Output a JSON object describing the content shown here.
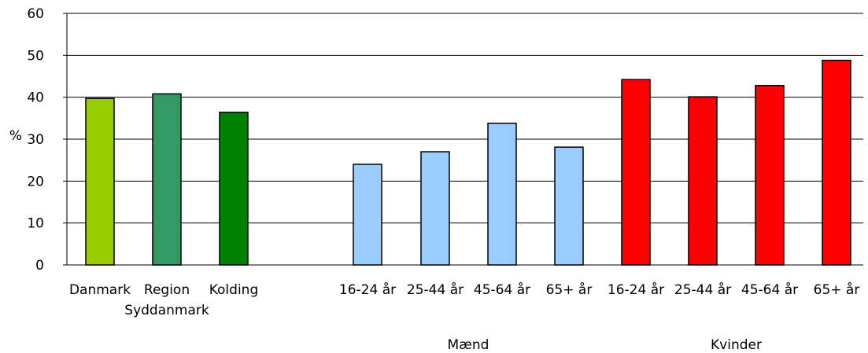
{
  "chart_data": {
    "type": "bar",
    "ylabel": "%",
    "ylim": [
      0,
      60
    ],
    "yticks": [
      "0",
      "10",
      "20",
      "30",
      "40",
      "50",
      "60"
    ],
    "grid": true,
    "categories": [
      {
        "label": [
          "Danmark"
        ],
        "value": 39.7,
        "color": "#99cc00"
      },
      {
        "label": [
          "Region",
          "Syddanmark"
        ],
        "value": 40.8,
        "color": "#339966"
      },
      {
        "label": [
          "Kolding"
        ],
        "value": 36.4,
        "color": "#008000"
      },
      {
        "label": [
          "16-24 år"
        ],
        "value": 24.0,
        "color": "#99ccff",
        "group": "Mænd"
      },
      {
        "label": [
          "25-44 år"
        ],
        "value": 27.0,
        "color": "#99ccff",
        "group": "Mænd"
      },
      {
        "label": [
          "45-64 år"
        ],
        "value": 33.8,
        "color": "#99ccff",
        "group": "Mænd"
      },
      {
        "label": [
          "65+ år"
        ],
        "value": 28.1,
        "color": "#99ccff",
        "group": "Mænd"
      },
      {
        "label": [
          "16-24 år"
        ],
        "value": 44.2,
        "color": "#ff0000",
        "group": "Kvinder"
      },
      {
        "label": [
          "25-44 år"
        ],
        "value": 40.1,
        "color": "#ff0000",
        "group": "Kvinder"
      },
      {
        "label": [
          "45-64 år"
        ],
        "value": 42.8,
        "color": "#ff0000",
        "group": "Kvinder"
      },
      {
        "label": [
          "65+ år"
        ],
        "value": 48.8,
        "color": "#ff0000",
        "group": "Kvinder"
      }
    ],
    "groups": [
      "Mænd",
      "Kvinder"
    ]
  }
}
